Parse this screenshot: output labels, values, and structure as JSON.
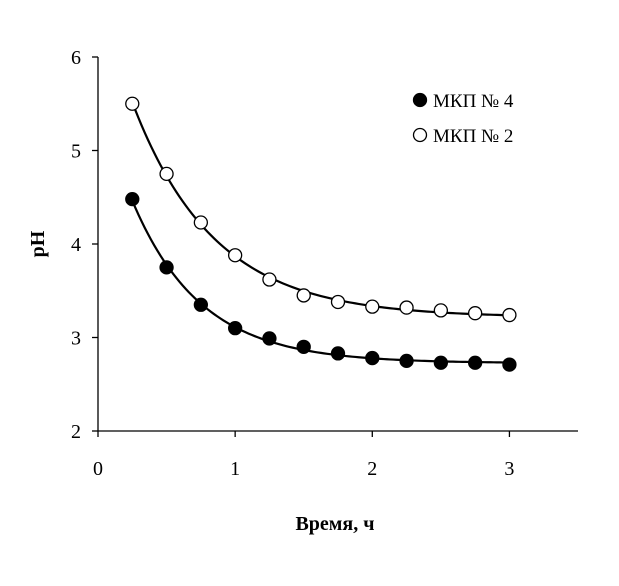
{
  "chart_data": {
    "type": "scatter",
    "title": "",
    "xlabel": "Время, ч",
    "ylabel": "pH",
    "xlim": [
      0,
      3.5
    ],
    "ylim": [
      2,
      6
    ],
    "x_ticks": [
      "0",
      "1",
      "2",
      "3"
    ],
    "y_ticks": [
      "2",
      "3",
      "4",
      "5",
      "6"
    ],
    "grid": false,
    "legend_position": "top-right",
    "series": [
      {
        "name": "МКП № 4",
        "marker": "filled-circle",
        "color": "#000000",
        "x": [
          0.25,
          0.5,
          0.75,
          1.0,
          1.25,
          1.5,
          1.75,
          2.0,
          2.25,
          2.5,
          2.75,
          3.0
        ],
        "y": [
          4.48,
          3.75,
          3.35,
          3.1,
          2.99,
          2.9,
          2.83,
          2.78,
          2.75,
          2.73,
          2.73,
          2.71
        ],
        "trend_line": true
      },
      {
        "name": "МКП № 2",
        "marker": "open-circle",
        "color": "#000000",
        "x": [
          0.25,
          0.5,
          0.75,
          1.0,
          1.25,
          1.5,
          1.75,
          2.0,
          2.25,
          2.5,
          2.75,
          3.0
        ],
        "y": [
          5.5,
          4.75,
          4.23,
          3.88,
          3.62,
          3.45,
          3.38,
          3.33,
          3.32,
          3.29,
          3.26,
          3.24
        ],
        "trend_line": true
      }
    ]
  }
}
